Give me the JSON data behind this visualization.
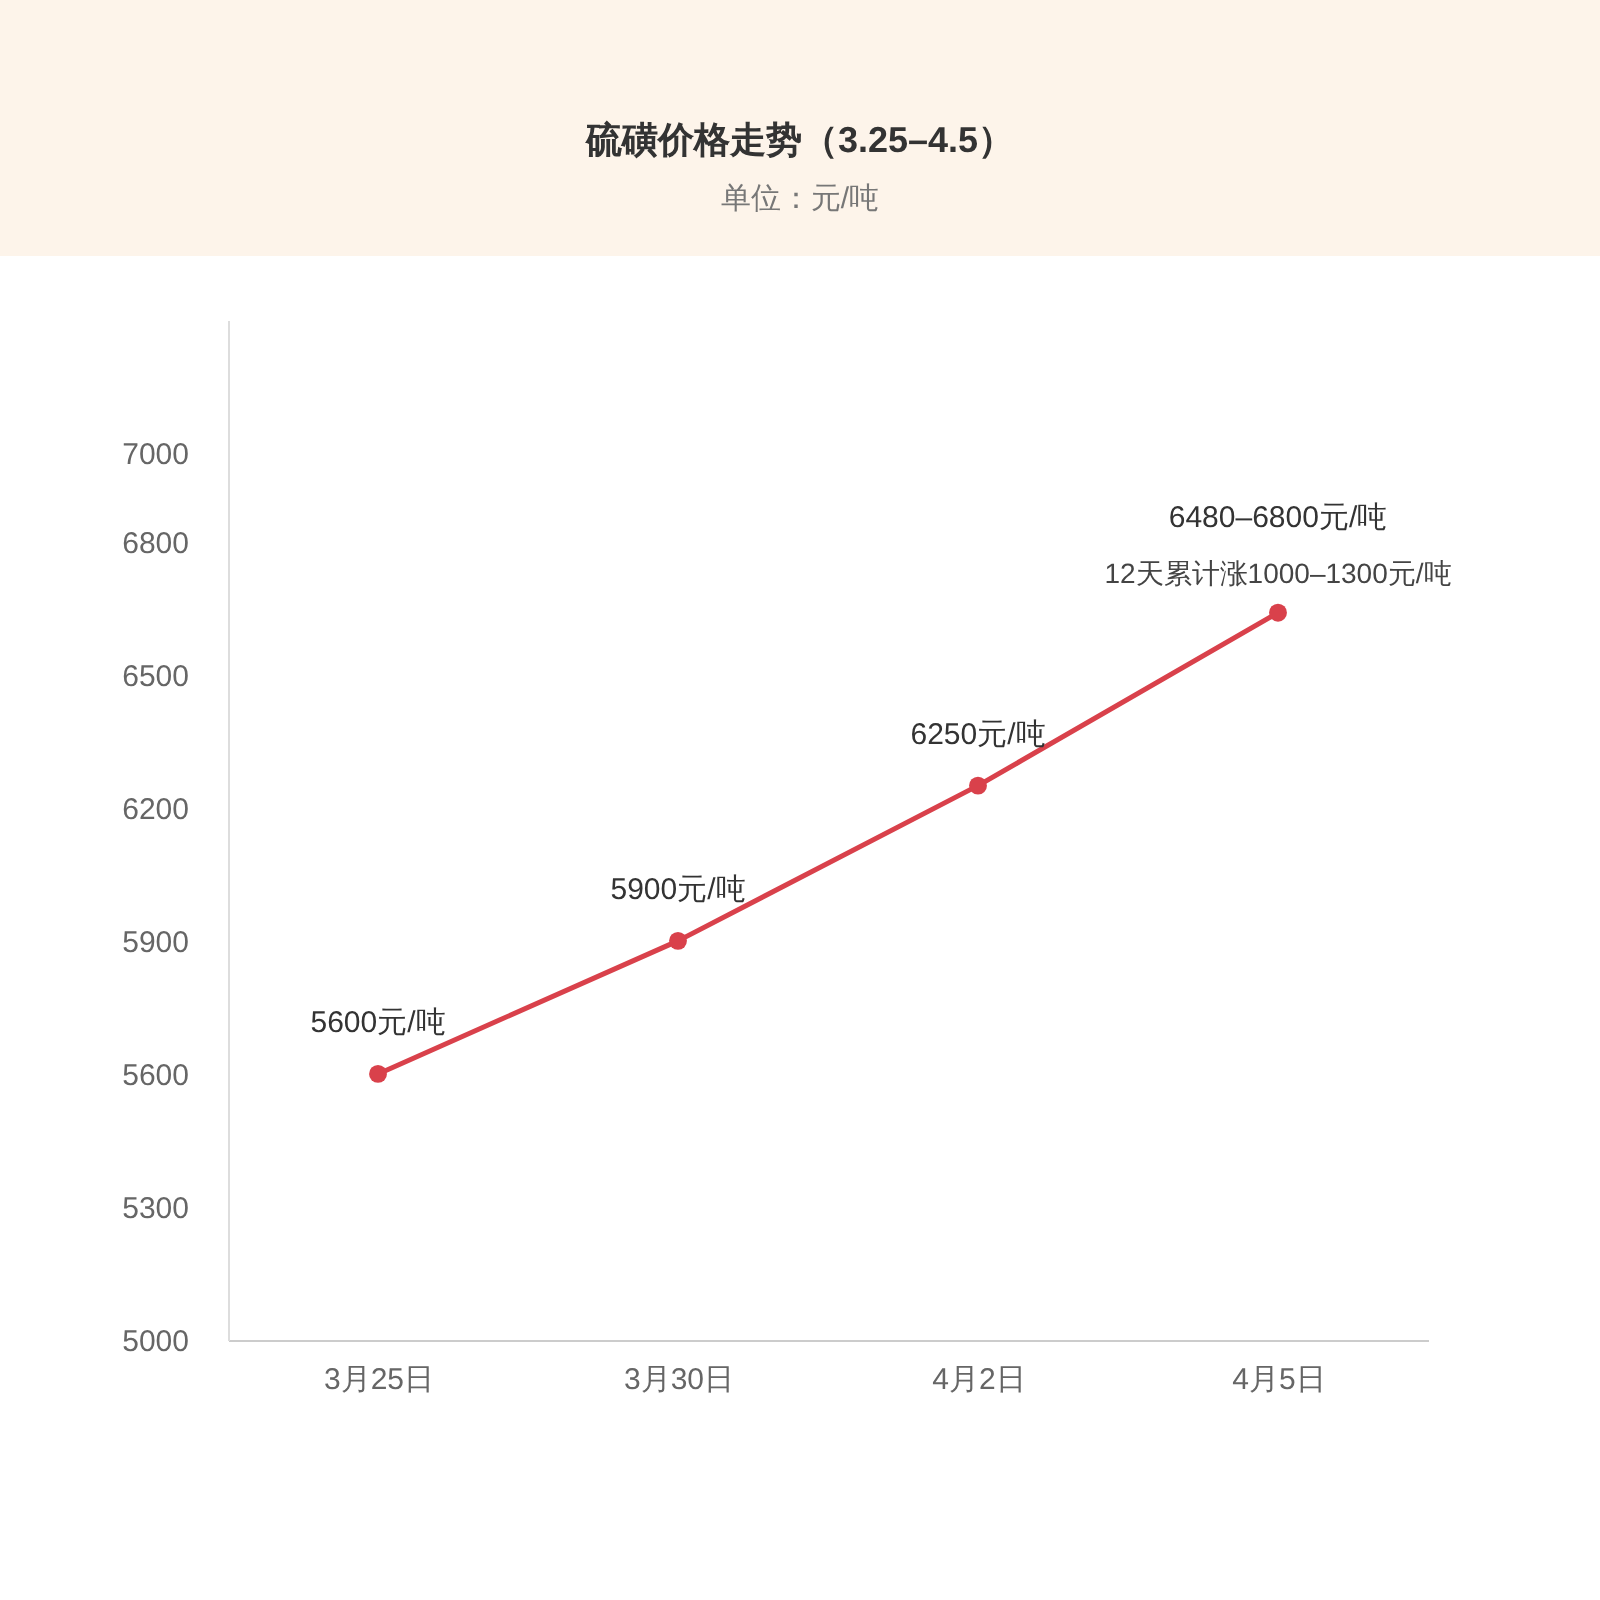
{
  "chart_data": {
    "type": "line",
    "title": "硫磺价格走势（3.25–4.5）",
    "subtitle": "单位：元/吨",
    "categories": [
      "3月25日",
      "3月30日",
      "4月2日",
      "4月5日"
    ],
    "series": [
      {
        "color": "#d9414b",
        "values": [
          5600,
          5900,
          6250,
          6640
        ],
        "value_labels": [
          "5600元/吨",
          "5900元/吨",
          "6250元/吨",
          "6480–6800元/吨"
        ]
      }
    ],
    "annotations": [
      {
        "text": "12天累计涨1000–1300元/吨",
        "x": "4月5日",
        "y": 6640
      }
    ],
    "ylim": [
      5000,
      7300
    ],
    "yticks": [
      5000,
      5300,
      5600,
      5900,
      6200,
      6500,
      6800,
      7000
    ],
    "grid": false,
    "marker": "circle",
    "line_style": "solid"
  }
}
